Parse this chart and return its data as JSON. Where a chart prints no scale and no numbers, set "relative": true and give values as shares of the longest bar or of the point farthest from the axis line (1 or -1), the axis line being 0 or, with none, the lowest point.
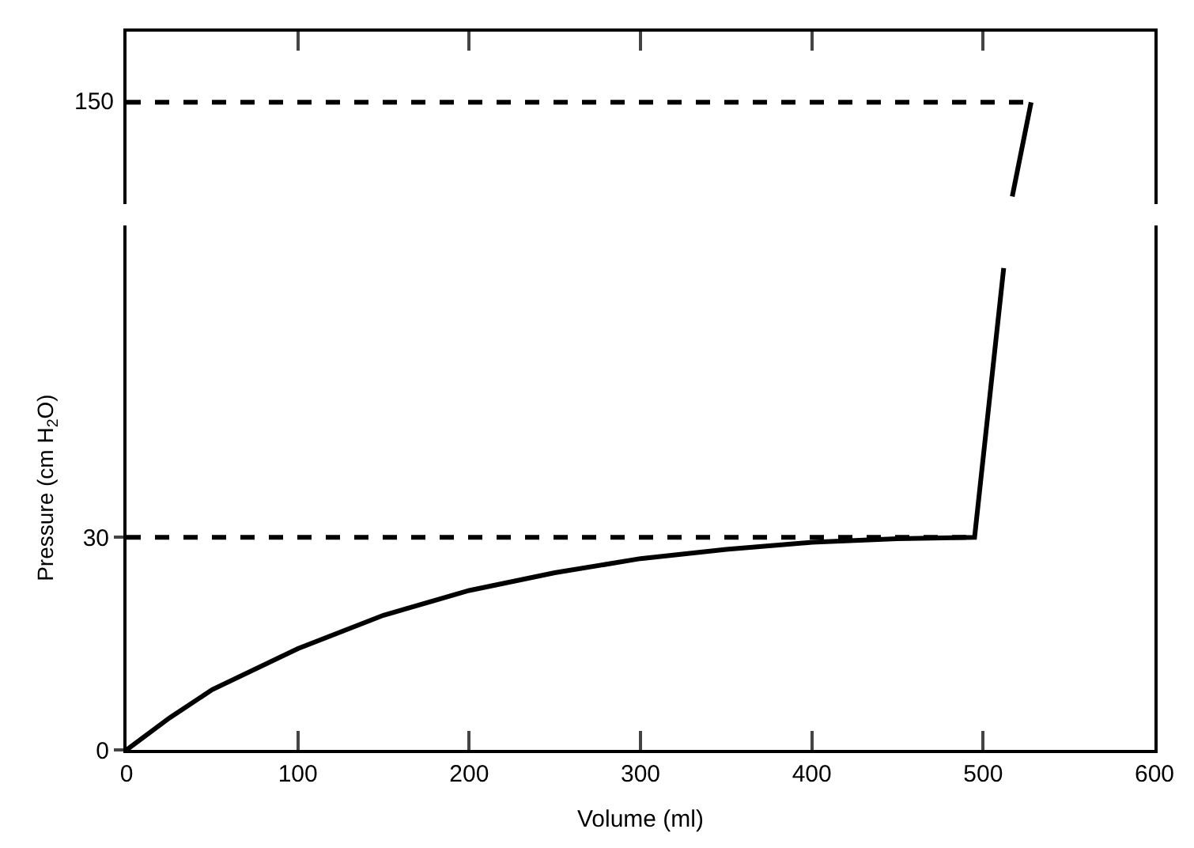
{
  "chart_data": [
    {
      "type": "line",
      "xlim": [
        0,
        600
      ],
      "relative": true,
      "tick_labels": false,
      "annotations": [
        "150"
      ],
      "xticks": [
        100,
        200,
        300,
        400,
        500
      ],
      "series": [
        {
          "color": "#000000",
          "line_style": "solid",
          "x": [
            517,
            528
          ],
          "values": [
            0,
            1
          ]
        },
        {
          "color": "#000000",
          "line_style": "dashed",
          "x": [
            0,
            528
          ],
          "values": [
            1,
            1
          ]
        }
      ]
    },
    {
      "type": "line",
      "xlim": [
        0,
        600
      ],
      "ylim": [
        0,
        74
      ],
      "xticks": [
        0,
        100,
        200,
        300,
        400,
        500,
        600
      ],
      "yticks": [
        0,
        30
      ],
      "xlabel": "Volume (ml)",
      "ylabel": "Pressure (cm H$_{2}$O)",
      "series": [
        {
          "color": "#000000",
          "line_style": "solid",
          "x": [
            0,
            25,
            50,
            100,
            150,
            200,
            250,
            300,
            350,
            400,
            450,
            495,
            512
          ],
          "values": [
            0,
            4.5,
            8.5,
            14.3,
            19,
            22.5,
            25,
            27,
            28.3,
            29.3,
            29.8,
            30,
            68
          ]
        },
        {
          "color": "#000000",
          "line_style": "dashed",
          "x": [
            0,
            495
          ],
          "values": [
            30,
            30
          ]
        }
      ]
    }
  ]
}
